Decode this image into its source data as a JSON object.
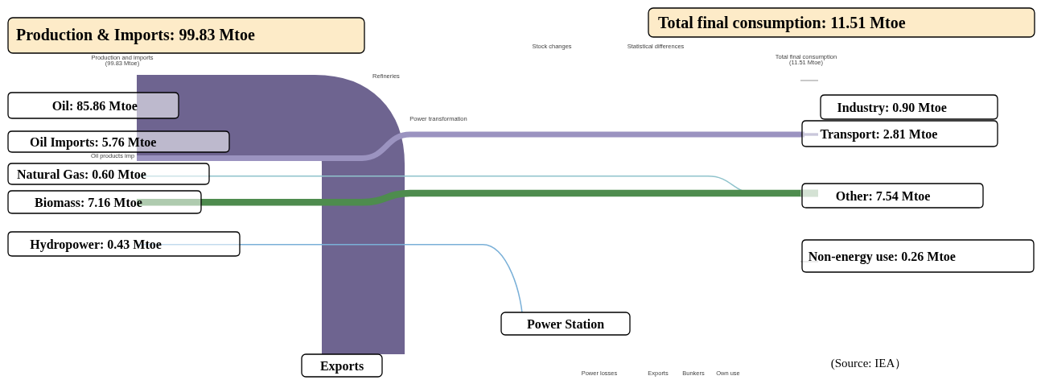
{
  "chart_data": {
    "type": "other",
    "title": "Production & Imports: 99.83 Mtoe",
    "subtitle": "Total final consumption: 11.51 Mtoe",
    "values": [
      85.86,
      5.76,
      0.6,
      7.16,
      0.43,
      0.9,
      2.81,
      7.54,
      0.26
    ],
    "categories": [
      "Oil",
      "Oil Imports",
      "Natural Gas",
      "Biomass",
      "Hydropower",
      "Industry",
      "Transport",
      "Other",
      "Non-energy use"
    ],
    "value_labels": [
      ": 85.86 Mtoe",
      ": 5.76 Mtoe",
      ": 0.60 Mtoe",
      ": 7.16 Mtoe",
      ": 0.43 Mtoe",
      ": 0.90 Mtoe",
      ": 2.81 Mtoe",
      ": 7.54 Mtoe",
      ": 0.26 Mtoe"
    ],
    "annotations": [
      "Production and imports",
      "(99.83 Mtoe)",
      "Refineries",
      "Power transformation",
      "Oil products imp",
      "Stock changes",
      "Statistical differences",
      "Total final consumption",
      "(11.51 Mtoe)",
      "Power losses",
      "Exports",
      "Bunkers",
      "Own use",
      "Exports",
      "Power Station",
      "(Source: IEA）"
    ]
  }
}
